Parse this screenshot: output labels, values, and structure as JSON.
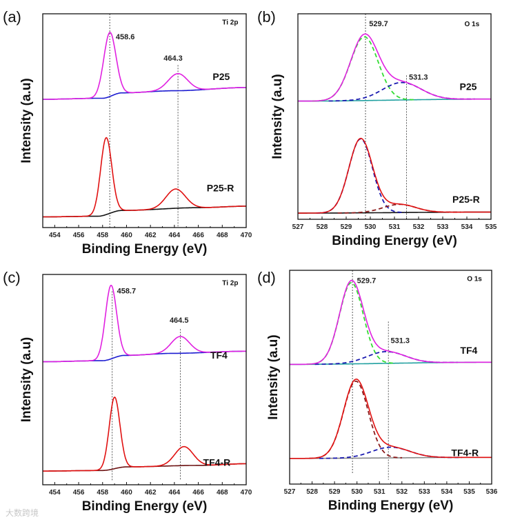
{
  "watermark": "大数跨境",
  "chart_data": [
    {
      "panel": "(a)",
      "type": "line",
      "core_level": "Ti 2p",
      "xlabel": "Binding Energy (eV)",
      "ylabel": "Intensity (a.u)",
      "xlim": [
        453,
        470
      ],
      "xticks": [
        454,
        456,
        458,
        460,
        462,
        464,
        466,
        468,
        470
      ],
      "ylim": [
        0,
        100
      ],
      "vlines": [
        [
          458.6,
          0,
          100
        ],
        [
          464.3,
          0,
          76
        ]
      ],
      "peak_labels": [
        {
          "text": "458.6",
          "x": 459.1,
          "y": 88
        },
        {
          "text": "464.3",
          "x": 463.1,
          "y": 78
        }
      ],
      "core_pos": [
        468.0,
        95
      ],
      "spectra": [
        {
          "name": "P25",
          "label_pos": [
            467.2,
            69
          ],
          "baseline": [
            [
              453,
              60
            ],
            [
              458,
              60.5
            ],
            [
              459.6,
              63
            ],
            [
              464,
              64
            ],
            [
              470,
              65.5
            ]
          ],
          "peaks": [
            {
              "center": 458.6,
              "height": 30,
              "fwhm": 1.2
            },
            {
              "center": 464.3,
              "height": 8,
              "fwhm": 1.9
            }
          ],
          "total_color": "#e020e0",
          "background_color": "#1a1ad0",
          "component_colors": []
        },
        {
          "name": "P25-R",
          "label_pos": [
            466.7,
            17
          ],
          "baseline": [
            [
              453,
              5
            ],
            [
              457.6,
              5.3
            ],
            [
              459.6,
              8
            ],
            [
              466,
              9.3
            ],
            [
              470,
              10
            ]
          ],
          "peaks": [
            {
              "center": 458.3,
              "height": 36,
              "fwhm": 1.1
            },
            {
              "center": 464.1,
              "height": 9,
              "fwhm": 1.9
            }
          ],
          "total_color": "#e01010",
          "background_color": "#111111",
          "component_colors": []
        }
      ]
    },
    {
      "panel": "(b)",
      "type": "line",
      "core_level": "O 1s",
      "xlabel": "Binding Energy (eV)",
      "ylabel": "Intensity (a.u)",
      "xlim": [
        527,
        535
      ],
      "xticks": [
        527,
        528,
        529,
        530,
        531,
        532,
        533,
        534,
        535
      ],
      "ylim": [
        0,
        100
      ],
      "vlines": [
        [
          529.8,
          0,
          100
        ],
        [
          531.5,
          0,
          70
        ]
      ],
      "peak_labels": [
        {
          "text": "529.7",
          "x": 529.95,
          "y": 94
        },
        {
          "text": "531.3",
          "x": 531.6,
          "y": 68
        }
      ],
      "core_pos": [
        533.9,
        94
      ],
      "spectra": [
        {
          "name": "P25",
          "label_pos": [
            533.7,
            63
          ],
          "baseline": [
            [
              527,
              57.5
            ],
            [
              535,
              58.5
            ]
          ],
          "peaks": [
            {
              "center": 529.75,
              "height": 31,
              "fwhm": 1.35
            },
            {
              "center": 531.3,
              "height": 8.5,
              "fwhm": 1.9
            }
          ],
          "total_color": "#e020e0",
          "background_color": "#20a0a0",
          "component_colors": [
            "#33dd33",
            "#1a1ab0"
          ]
        },
        {
          "name": "P25-R",
          "label_pos": [
            533.4,
            8
          ],
          "baseline": [
            [
              527,
              3
            ],
            [
              535,
              3.5
            ]
          ],
          "peaks": [
            {
              "center": 529.6,
              "height": 36,
              "fwhm": 1.15
            },
            {
              "center": 531.2,
              "height": 4,
              "fwhm": 1.6
            }
          ],
          "total_color": "#e01010",
          "background_color": "#111111",
          "component_colors": [
            "#1a1ab0",
            "#8b1a1a"
          ]
        }
      ]
    },
    {
      "panel": "(c)",
      "type": "line",
      "core_level": "Ti 2p",
      "xlabel": "Binding Energy (eV)",
      "ylabel": "Intensity (a.u)",
      "xlim": [
        453,
        470
      ],
      "xticks": [
        454,
        456,
        458,
        460,
        462,
        464,
        466,
        468,
        470
      ],
      "ylim": [
        0,
        100
      ],
      "vlines": [
        [
          458.8,
          2,
          92
        ],
        [
          464.5,
          2,
          74
        ]
      ],
      "peak_labels": [
        {
          "text": "458.7",
          "x": 459.2,
          "y": 91
        },
        {
          "text": "464.5",
          "x": 463.6,
          "y": 77
        }
      ],
      "core_pos": [
        468.0,
        95
      ],
      "spectra": [
        {
          "name": "TF4",
          "label_pos": [
            467.0,
            60
          ],
          "baseline": [
            [
              453,
              58.5
            ],
            [
              458,
              59
            ],
            [
              459.8,
              61.5
            ],
            [
              464,
              62.5
            ],
            [
              470,
              63.5
            ]
          ],
          "peaks": [
            {
              "center": 458.7,
              "height": 35,
              "fwhm": 1.1
            },
            {
              "center": 464.5,
              "height": 8,
              "fwhm": 1.8
            }
          ],
          "total_color": "#e020e0",
          "background_color": "#1a1ad0",
          "component_colors": []
        },
        {
          "name": "TF4-R",
          "label_pos": [
            466.4,
            9
          ],
          "baseline": [
            [
              453,
              6.5
            ],
            [
              458,
              6.8
            ],
            [
              460,
              8.5
            ],
            [
              466,
              9.2
            ],
            [
              470,
              10
            ]
          ],
          "peaks": [
            {
              "center": 459.0,
              "height": 34,
              "fwhm": 1.05
            },
            {
              "center": 464.8,
              "height": 9,
              "fwhm": 1.8
            }
          ],
          "total_color": "#e01010",
          "background_color": "#6b1010",
          "component_colors": []
        }
      ]
    },
    {
      "panel": "(d)",
      "type": "line",
      "core_level": "O 1s",
      "xlabel": "Binding Energy (eV)",
      "ylabel": "Intensity (a.u)",
      "xlim": [
        527,
        536
      ],
      "xticks": [
        527,
        528,
        529,
        530,
        531,
        532,
        533,
        534,
        535,
        536
      ],
      "ylim": [
        0,
        100
      ],
      "vlines": [
        [
          529.8,
          5,
          100
        ],
        [
          531.4,
          2,
          76
        ]
      ],
      "peak_labels": [
        {
          "text": "529.7",
          "x": 530.0,
          "y": 94
        },
        {
          "text": "531.3",
          "x": 531.5,
          "y": 66
        }
      ],
      "core_pos": [
        534.9,
        95
      ],
      "spectra": [
        {
          "name": "TF4",
          "label_pos": [
            534.6,
            61
          ],
          "baseline": [
            [
              527,
              56
            ],
            [
              536,
              57
            ]
          ],
          "peaks": [
            {
              "center": 529.75,
              "height": 38,
              "fwhm": 1.25
            },
            {
              "center": 531.3,
              "height": 5.5,
              "fwhm": 2.0
            }
          ],
          "total_color": "#e020e0",
          "background_color": "#20a0a0",
          "component_colors": [
            "#33dd33",
            "#1a1ab0"
          ]
        },
        {
          "name": "TF4-R",
          "label_pos": [
            534.2,
            13
          ],
          "baseline": [
            [
              527,
              12
            ],
            [
              536,
              12.5
            ]
          ],
          "peaks": [
            {
              "center": 529.95,
              "height": 36,
              "fwhm": 1.3
            },
            {
              "center": 531.5,
              "height": 5,
              "fwhm": 2.0
            }
          ],
          "total_color": "#e01010",
          "background_color": "#888888",
          "component_colors": [
            "#8b1a1a",
            "#1a1ab0"
          ]
        }
      ]
    }
  ]
}
